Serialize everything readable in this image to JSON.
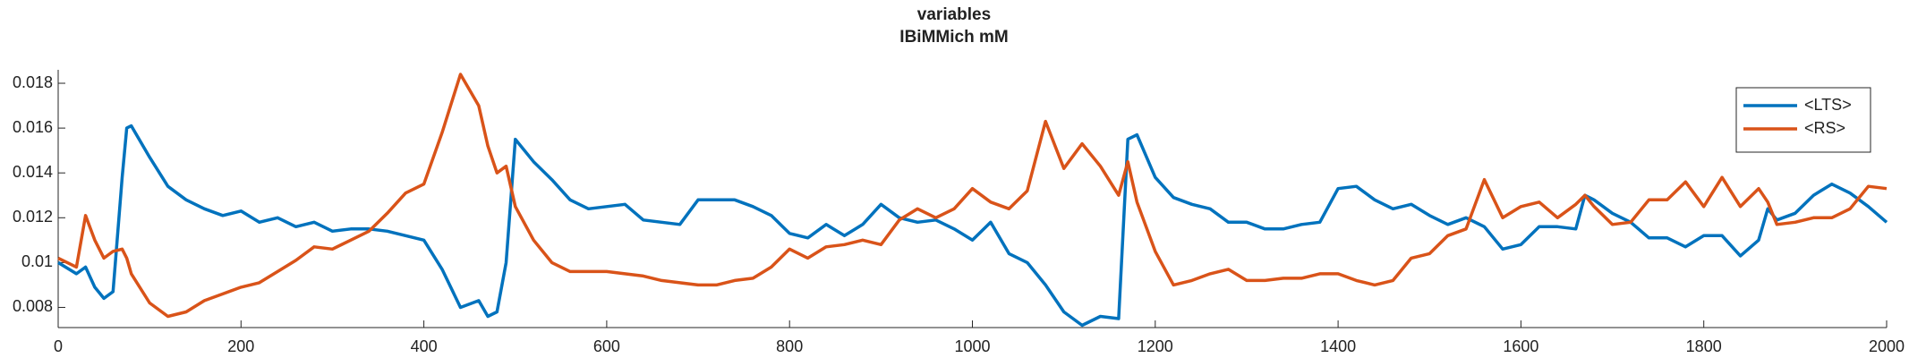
{
  "chart_data": {
    "type": "line",
    "title": "variables",
    "subtitle": "IBiMMich mM",
    "x": [
      0,
      20,
      30,
      40,
      50,
      60,
      70,
      75,
      80,
      100,
      120,
      140,
      160,
      180,
      200,
      220,
      240,
      260,
      280,
      300,
      320,
      340,
      360,
      380,
      400,
      420,
      440,
      460,
      470,
      480,
      490,
      500,
      520,
      540,
      560,
      580,
      600,
      620,
      640,
      660,
      680,
      700,
      720,
      740,
      760,
      780,
      800,
      820,
      840,
      860,
      880,
      900,
      920,
      940,
      960,
      980,
      1000,
      1020,
      1040,
      1060,
      1080,
      1100,
      1120,
      1140,
      1160,
      1170,
      1180,
      1200,
      1220,
      1240,
      1260,
      1280,
      1300,
      1320,
      1340,
      1360,
      1380,
      1400,
      1420,
      1440,
      1460,
      1480,
      1500,
      1520,
      1540,
      1560,
      1580,
      1600,
      1620,
      1640,
      1660,
      1670,
      1680,
      1700,
      1720,
      1740,
      1760,
      1780,
      1800,
      1820,
      1840,
      1860,
      1870,
      1880,
      1900,
      1920,
      1940,
      1960,
      1980,
      2000
    ],
    "series": [
      {
        "name": "<LTS>",
        "color": "#0072BD",
        "values": [
          0.01,
          0.0095,
          0.0098,
          0.0089,
          0.0084,
          0.0087,
          0.0138,
          0.016,
          0.0161,
          0.0147,
          0.0134,
          0.0128,
          0.0124,
          0.0121,
          0.0123,
          0.0118,
          0.012,
          0.0116,
          0.0118,
          0.0114,
          0.0115,
          0.0115,
          0.0114,
          0.0112,
          0.011,
          0.0097,
          0.008,
          0.0083,
          0.0076,
          0.0078,
          0.01,
          0.0155,
          0.0145,
          0.0137,
          0.0128,
          0.0124,
          0.0125,
          0.0126,
          0.0119,
          0.0118,
          0.0117,
          0.0128,
          0.0128,
          0.0128,
          0.0125,
          0.0121,
          0.0113,
          0.0111,
          0.0117,
          0.0112,
          0.0117,
          0.0126,
          0.012,
          0.0118,
          0.0119,
          0.0115,
          0.011,
          0.0118,
          0.0104,
          0.01,
          0.009,
          0.0078,
          0.0072,
          0.0076,
          0.0075,
          0.0155,
          0.0157,
          0.0138,
          0.0129,
          0.0126,
          0.0124,
          0.0118,
          0.0118,
          0.0115,
          0.0115,
          0.0117,
          0.0118,
          0.0133,
          0.0134,
          0.0128,
          0.0124,
          0.0126,
          0.0121,
          0.0117,
          0.012,
          0.0116,
          0.0106,
          0.0108,
          0.0116,
          0.0116,
          0.0115,
          0.013,
          0.0128,
          0.0122,
          0.0118,
          0.0111,
          0.0111,
          0.0107,
          0.0112,
          0.0112,
          0.0103,
          0.011,
          0.0124,
          0.0119,
          0.0122,
          0.013,
          0.0135,
          0.0131,
          0.0125,
          0.0118
        ]
      },
      {
        "name": "<RS>",
        "color": "#D95319",
        "values": [
          0.0102,
          0.0098,
          0.0121,
          0.011,
          0.0102,
          0.0105,
          0.0106,
          0.0102,
          0.0095,
          0.0082,
          0.0076,
          0.0078,
          0.0083,
          0.0086,
          0.0089,
          0.0091,
          0.0096,
          0.0101,
          0.0107,
          0.0106,
          0.011,
          0.0114,
          0.0122,
          0.0131,
          0.0135,
          0.0158,
          0.0184,
          0.017,
          0.0152,
          0.014,
          0.0143,
          0.0125,
          0.011,
          0.01,
          0.0096,
          0.0096,
          0.0096,
          0.0095,
          0.0094,
          0.0092,
          0.0091,
          0.009,
          0.009,
          0.0092,
          0.0093,
          0.0098,
          0.0106,
          0.0102,
          0.0107,
          0.0108,
          0.011,
          0.0108,
          0.0119,
          0.0124,
          0.012,
          0.0124,
          0.0133,
          0.0127,
          0.0124,
          0.0132,
          0.0163,
          0.0142,
          0.0153,
          0.0143,
          0.013,
          0.0145,
          0.0127,
          0.0105,
          0.009,
          0.0092,
          0.0095,
          0.0097,
          0.0092,
          0.0092,
          0.0093,
          0.0093,
          0.0095,
          0.0095,
          0.0092,
          0.009,
          0.0092,
          0.0102,
          0.0104,
          0.0112,
          0.0115,
          0.0137,
          0.012,
          0.0125,
          0.0127,
          0.012,
          0.0126,
          0.013,
          0.0125,
          0.0117,
          0.0118,
          0.0128,
          0.0128,
          0.0136,
          0.0125,
          0.0138,
          0.0125,
          0.0133,
          0.0127,
          0.0117,
          0.0118,
          0.012,
          0.012,
          0.0124,
          0.0134,
          0.0133
        ]
      }
    ],
    "xlim": [
      0,
      2000
    ],
    "ylim": [
      0.0071,
      0.0186
    ],
    "xticks": [
      0,
      200,
      400,
      600,
      800,
      1000,
      1200,
      1400,
      1600,
      1800,
      2000
    ],
    "yticks": [
      0.008,
      0.01,
      0.012,
      0.014,
      0.016,
      0.018
    ],
    "legend": "upper right"
  }
}
